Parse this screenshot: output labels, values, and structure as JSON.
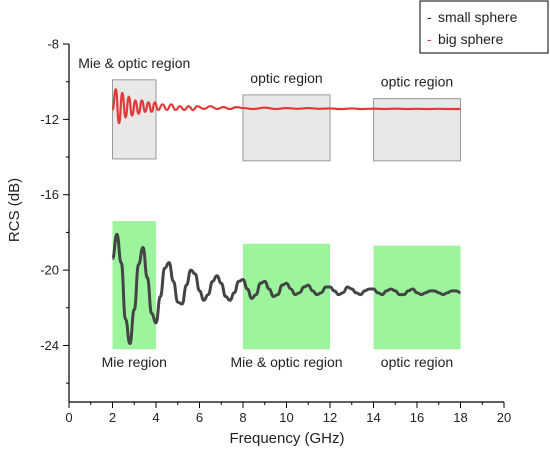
{
  "chart_data": {
    "type": "line",
    "title": "",
    "xlabel": "Frequency (GHz)",
    "ylabel": "RCS (dB)",
    "xlim": [
      0,
      20
    ],
    "ylim": [
      -27,
      -8
    ],
    "xticks": [
      0,
      2,
      4,
      6,
      8,
      10,
      12,
      14,
      16,
      18,
      20
    ],
    "yticks": [
      -8,
      -12,
      -16,
      -20,
      -24
    ],
    "grid": false,
    "legend": {
      "placement": "top-right",
      "entries": [
        {
          "marker": "-",
          "label": "small sphere",
          "color": "#222222"
        },
        {
          "marker": "-",
          "label": "big sphere",
          "color": "#e03a3a"
        }
      ]
    },
    "series": [
      {
        "name": "small sphere",
        "color": "#444444",
        "x": [
          2.0,
          2.2,
          2.4,
          2.6,
          2.8,
          3.0,
          3.2,
          3.4,
          3.6,
          3.8,
          4.0,
          4.2,
          4.4,
          4.6,
          4.8,
          5.0,
          5.2,
          5.4,
          5.6,
          5.8,
          6.0,
          6.2,
          6.4,
          6.6,
          6.8,
          7.0,
          7.2,
          7.4,
          7.6,
          7.8,
          8.0,
          8.2,
          8.4,
          8.6,
          8.8,
          9.0,
          9.2,
          9.4,
          9.6,
          9.8,
          10.0,
          10.2,
          10.4,
          10.6,
          10.8,
          11.0,
          11.2,
          11.4,
          11.6,
          11.8,
          12.0,
          12.2,
          12.4,
          12.6,
          12.8,
          13.0,
          13.2,
          13.4,
          13.6,
          13.8,
          14.0,
          14.2,
          14.4,
          14.6,
          14.8,
          15.0,
          15.2,
          15.4,
          15.6,
          15.8,
          16.0,
          16.2,
          16.4,
          16.6,
          16.8,
          17.0,
          17.2,
          17.4,
          17.6,
          17.8,
          18.0
        ],
        "y": [
          -19.4,
          -18.1,
          -19.6,
          -22.6,
          -23.9,
          -22.1,
          -19.7,
          -18.8,
          -20.4,
          -22.3,
          -22.8,
          -21.4,
          -19.9,
          -19.6,
          -20.6,
          -21.7,
          -21.8,
          -20.8,
          -20.0,
          -20.2,
          -21.1,
          -21.6,
          -21.3,
          -20.6,
          -20.3,
          -20.7,
          -21.4,
          -21.6,
          -21.2,
          -20.6,
          -20.5,
          -21.0,
          -21.5,
          -21.3,
          -20.7,
          -20.6,
          -21.0,
          -21.4,
          -21.3,
          -20.8,
          -20.7,
          -21.0,
          -21.3,
          -21.2,
          -20.9,
          -20.8,
          -21.1,
          -21.3,
          -21.2,
          -20.9,
          -20.9,
          -21.1,
          -21.3,
          -21.2,
          -20.9,
          -21.0,
          -21.2,
          -21.3,
          -21.1,
          -21.0,
          -21.0,
          -21.2,
          -21.3,
          -21.1,
          -21.0,
          -21.1,
          -21.3,
          -21.3,
          -21.1,
          -21.0,
          -21.2,
          -21.3,
          -21.2,
          -21.1,
          -21.1,
          -21.2,
          -21.3,
          -21.2,
          -21.1,
          -21.1,
          -21.2
        ]
      },
      {
        "name": "big sphere",
        "color": "#e03a3a",
        "x": [
          2.0,
          2.15,
          2.3,
          2.45,
          2.6,
          2.75,
          2.9,
          3.05,
          3.2,
          3.35,
          3.5,
          3.65,
          3.8,
          3.95,
          4.1,
          4.3,
          4.5,
          4.7,
          4.9,
          5.1,
          5.3,
          5.5,
          5.7,
          5.9,
          6.2,
          6.5,
          6.8,
          7.1,
          7.4,
          7.7,
          8.0,
          8.5,
          9.0,
          9.5,
          10.0,
          10.5,
          11.0,
          11.5,
          12.0,
          12.5,
          13.0,
          13.5,
          14.0,
          14.5,
          15.0,
          15.5,
          16.0,
          16.5,
          17.0,
          17.5,
          18.0
        ],
        "y": [
          -11.5,
          -10.4,
          -12.2,
          -10.6,
          -11.9,
          -10.8,
          -11.8,
          -11.0,
          -11.7,
          -11.0,
          -11.6,
          -11.1,
          -11.6,
          -11.1,
          -11.5,
          -11.2,
          -11.5,
          -11.2,
          -11.5,
          -11.3,
          -11.5,
          -11.3,
          -11.5,
          -11.3,
          -11.45,
          -11.3,
          -11.45,
          -11.35,
          -11.45,
          -11.35,
          -11.4,
          -11.45,
          -11.38,
          -11.45,
          -11.4,
          -11.44,
          -11.4,
          -11.44,
          -11.42,
          -11.45,
          -11.42,
          -11.45,
          -11.43,
          -11.45,
          -11.43,
          -11.45,
          -11.44,
          -11.45,
          -11.44,
          -11.45,
          -11.45
        ]
      }
    ],
    "regions": [
      {
        "label": "Mie & optic region",
        "x0": 2,
        "x1": 4,
        "y0": -14.1,
        "y1": -9.9,
        "fill": "#e8e8e8",
        "label_pos": "above"
      },
      {
        "label": "optic region",
        "x0": 8,
        "x1": 12,
        "y0": -14.2,
        "y1": -10.7,
        "fill": "#e8e8e8",
        "label_pos": "above"
      },
      {
        "label": "optic region",
        "x0": 14,
        "x1": 18,
        "y0": -14.2,
        "y1": -10.9,
        "fill": "#e8e8e8",
        "label_pos": "above"
      },
      {
        "label": "Mie region",
        "x0": 2,
        "x1": 4,
        "y0": -24.2,
        "y1": -17.4,
        "fill": "#9cf59c",
        "label_pos": "below"
      },
      {
        "label": "Mie & optic region",
        "x0": 8,
        "x1": 12,
        "y0": -24.2,
        "y1": -18.6,
        "fill": "#9cf59c",
        "label_pos": "below"
      },
      {
        "label": "optic region",
        "x0": 14,
        "x1": 18,
        "y0": -24.2,
        "y1": -18.7,
        "fill": "#9cf59c",
        "label_pos": "below"
      }
    ]
  }
}
